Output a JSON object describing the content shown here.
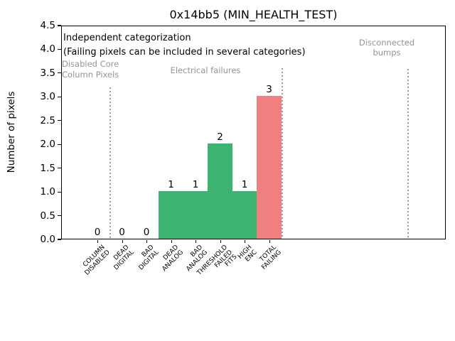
{
  "title": "0x14bb5 (MIN_HEALTH_TEST)",
  "annotations": {
    "independent": "Independent categorization",
    "independent_sub": "(Failing pixels can be included in several categories)",
    "group_disabled": "Disabled Core\nColumn Pixels",
    "group_electrical": "Electrical failures",
    "group_disconnected": "Disconnected\nbumps"
  },
  "colors": {
    "bar_green": "#3cb371",
    "bar_red": "#f08080",
    "muted_text": "#949494",
    "separator_gray": "#9a9a9a",
    "axis": "#000000"
  },
  "chart_data": {
    "type": "bar",
    "title": "0x14bb5 (MIN_HEALTH_TEST)",
    "xlabel": "",
    "ylabel": "Number of pixels",
    "categories": [
      "COLUMN\nDISABLED",
      "DEAD\nDIGITAL",
      "BAD\nDIGITAL",
      "DEAD\nANALOG",
      "BAD\nANALOG",
      "THRESHOLD\nFAILED\nFITS",
      "HIGH\nENC",
      "TOTAL\nFAILING"
    ],
    "values": [
      0,
      0,
      0,
      1,
      1,
      2,
      1,
      3
    ],
    "bar_colors": [
      "#3cb371",
      "#3cb371",
      "#3cb371",
      "#3cb371",
      "#3cb371",
      "#3cb371",
      "#3cb371",
      "#f08080"
    ],
    "value_labels": [
      "0",
      "0",
      "0",
      "1",
      "1",
      "2",
      "1",
      "3"
    ],
    "ylim": [
      0,
      4.5
    ],
    "ytick_step": 0.5,
    "grid": false,
    "legend": null,
    "group_sections": [
      {
        "label": "Disabled Core\nColumn Pixels",
        "categories": [
          "COLUMN\nDISABLED"
        ]
      },
      {
        "label": "Electrical failures",
        "categories": [
          "DEAD\nDIGITAL",
          "BAD\nDIGITAL",
          "DEAD\nANALOG",
          "BAD\nANALOG",
          "THRESHOLD\nFAILED\nFITS",
          "HIGH\nENC",
          "TOTAL\nFAILING"
        ]
      },
      {
        "label": "Disconnected\nbumps",
        "categories": []
      }
    ]
  }
}
